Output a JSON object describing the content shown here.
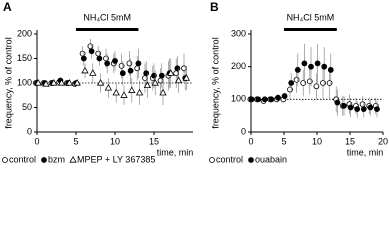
{
  "chart_data": [
    {
      "type": "scatter",
      "panel": "A",
      "annotation": "NH₄Cl 5mM",
      "annotation_span": [
        5,
        13
      ],
      "ylabel": "frequency, % of control",
      "xlabel": "time, min",
      "xlim": [
        0,
        20
      ],
      "xticks": [
        0,
        5,
        10,
        15
      ],
      "ylim": [
        0,
        200
      ],
      "yticks": [
        0,
        50,
        100,
        150,
        200
      ],
      "hline": 100,
      "x": [
        0,
        1,
        2,
        3,
        4,
        5,
        6,
        7,
        8,
        9,
        10,
        11,
        12,
        13,
        14,
        15,
        16,
        17,
        18,
        19
      ],
      "series": [
        {
          "name": "control",
          "marker": "open-circle",
          "color": "#000000",
          "values": [
            100,
            100,
            100,
            102,
            100,
            98,
            160,
            175,
            160,
            150,
            140,
            135,
            140,
            130,
            110,
            110,
            105,
            115,
            120,
            130
          ],
          "errors": [
            5,
            5,
            5,
            6,
            5,
            5,
            15,
            15,
            15,
            20,
            20,
            25,
            25,
            25,
            30,
            25,
            25,
            30,
            30,
            30
          ]
        },
        {
          "name": "bzm",
          "marker": "filled-circle",
          "color": "#000000",
          "values": [
            100,
            100,
            100,
            105,
            100,
            100,
            150,
            165,
            150,
            140,
            145,
            120,
            125,
            140,
            120,
            115,
            115,
            120,
            130,
            110
          ],
          "errors": [
            5,
            5,
            5,
            6,
            5,
            5,
            15,
            15,
            15,
            20,
            20,
            25,
            25,
            30,
            25,
            25,
            25,
            30,
            25,
            25
          ]
        },
        {
          "name": "MPEP + LY 367385",
          "marker": "open-triangle",
          "color": "#000000",
          "values": [
            100,
            98,
            100,
            100,
            100,
            100,
            125,
            120,
            100,
            90,
            80,
            75,
            85,
            80,
            95,
            100,
            80,
            120,
            105,
            110
          ],
          "errors": [
            5,
            5,
            5,
            5,
            5,
            5,
            15,
            20,
            20,
            20,
            20,
            20,
            25,
            25,
            25,
            25,
            25,
            30,
            25,
            25
          ]
        }
      ]
    },
    {
      "type": "scatter",
      "panel": "B",
      "annotation": "NH₄Cl 5mM",
      "annotation_span": [
        5,
        13
      ],
      "ylabel": "frequency, % of control",
      "xlabel": "time, min",
      "xlim": [
        0,
        20
      ],
      "xticks": [
        0,
        5,
        10,
        15,
        20
      ],
      "ylim": [
        0,
        300
      ],
      "yticks": [
        0,
        100,
        200,
        300
      ],
      "hline": 100,
      "x": [
        0,
        1,
        2,
        3,
        4,
        5,
        6,
        7,
        8,
        9,
        10,
        11,
        12,
        13,
        14,
        15,
        16,
        17,
        18,
        19
      ],
      "series": [
        {
          "name": "control",
          "marker": "open-circle",
          "color": "#000000",
          "values": [
            100,
            100,
            95,
            100,
            100,
            100,
            130,
            160,
            150,
            155,
            140,
            150,
            150,
            100,
            80,
            85,
            80,
            85,
            80,
            80
          ],
          "errors": [
            8,
            8,
            8,
            8,
            8,
            10,
            30,
            40,
            40,
            40,
            40,
            50,
            50,
            40,
            30,
            30,
            25,
            25,
            25,
            25
          ]
        },
        {
          "name": "ouabain",
          "marker": "filled-circle",
          "color": "#000000",
          "values": [
            100,
            100,
            100,
            100,
            105,
            110,
            150,
            190,
            210,
            200,
            210,
            200,
            190,
            90,
            80,
            75,
            70,
            70,
            75,
            70
          ],
          "errors": [
            8,
            8,
            8,
            8,
            10,
            10,
            30,
            50,
            60,
            60,
            60,
            60,
            50,
            40,
            30,
            30,
            25,
            25,
            25,
            25
          ]
        }
      ]
    }
  ]
}
